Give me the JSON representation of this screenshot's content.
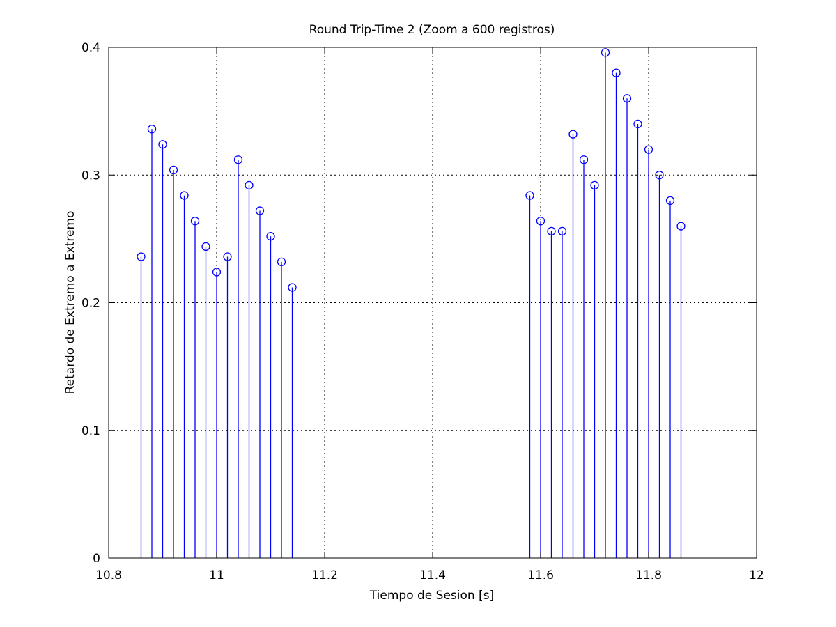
{
  "chart_data": {
    "type": "stem",
    "title": "Round Trip-Time 2 (Zoom a 600 registros)",
    "xlabel": "Tiempo de Sesion [s]",
    "ylabel": "Retardo de Extremo a Extremo",
    "xlim": [
      10.8,
      12
    ],
    "ylim": [
      0,
      0.4
    ],
    "xticks": [
      10.8,
      11,
      11.2,
      11.4,
      11.6,
      11.8,
      12
    ],
    "xtick_labels": [
      "10.8",
      "11",
      "11.2",
      "11.4",
      "11.6",
      "11.8",
      "12"
    ],
    "yticks": [
      0,
      0.1,
      0.2,
      0.3,
      0.4
    ],
    "ytick_labels": [
      "0",
      "0.1",
      "0.2",
      "0.3",
      "0.4"
    ],
    "grid": true,
    "marker": "circle",
    "series_color": "#0000ff",
    "x": [
      10.86,
      10.88,
      10.9,
      10.92,
      10.94,
      10.96,
      10.98,
      11.0,
      11.02,
      11.04,
      11.06,
      11.08,
      11.1,
      11.12,
      11.14,
      11.58,
      11.6,
      11.62,
      11.64,
      11.66,
      11.68,
      11.7,
      11.72,
      11.74,
      11.76,
      11.78,
      11.8,
      11.82,
      11.84,
      11.86
    ],
    "y": [
      0.236,
      0.336,
      0.324,
      0.304,
      0.284,
      0.264,
      0.244,
      0.224,
      0.236,
      0.312,
      0.292,
      0.272,
      0.252,
      0.232,
      0.212,
      0.284,
      0.264,
      0.256,
      0.256,
      0.332,
      0.312,
      0.292,
      0.396,
      0.38,
      0.36,
      0.34,
      0.32,
      0.3,
      0.28,
      0.26
    ]
  }
}
